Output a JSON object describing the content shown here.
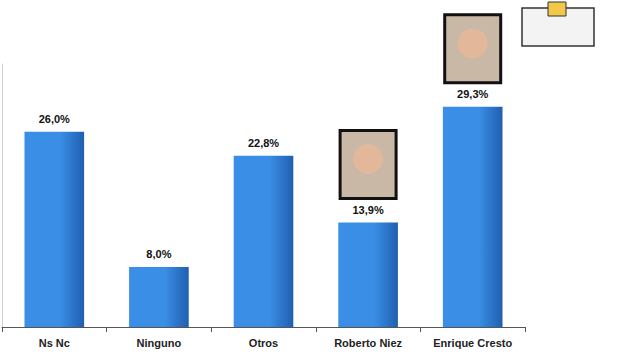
{
  "chart_data": {
    "type": "bar",
    "categories": [
      "Ns Nc",
      "Ninguno",
      "Otros",
      "Roberto Niez",
      "Enrique Cresto"
    ],
    "values": [
      26.0,
      8.0,
      22.8,
      13.9,
      29.3
    ],
    "value_labels": [
      "26,0%",
      "8,0%",
      "22,8%",
      "13,9%",
      "29,3%"
    ],
    "color": "#3a8ee6",
    "ylim": [
      0,
      35
    ],
    "yticks": [
      0,
      35
    ],
    "grid": false,
    "data_labels": true,
    "tick_labels": "x"
  }
}
